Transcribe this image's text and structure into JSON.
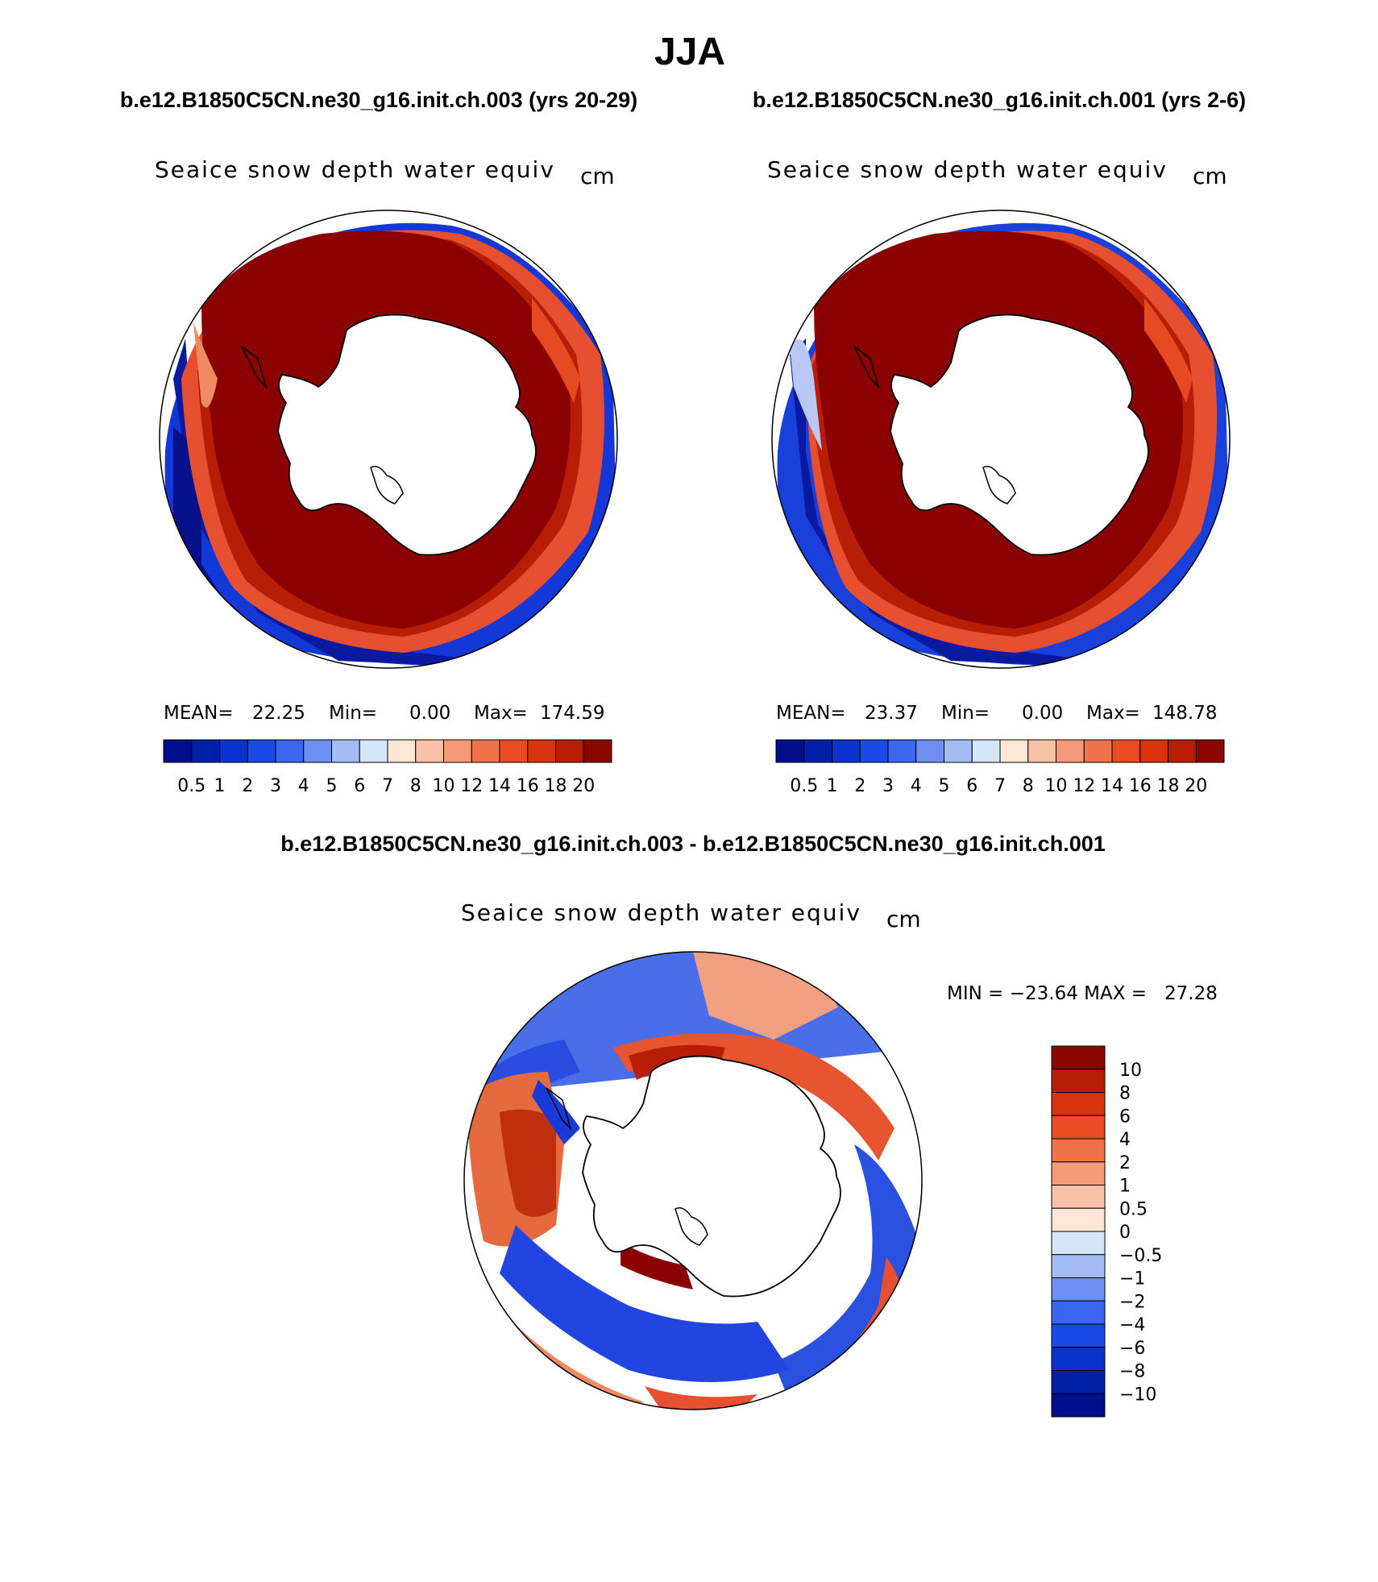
{
  "title": "JJA",
  "panels": [
    {
      "case_title": "b.e12.B1850C5CN.ne30_g16.init.ch.003 (yrs 20-29)",
      "field": "Seaice snow depth water equiv",
      "units": "cm",
      "stats": {
        "mean_label": "MEAN=",
        "mean": "22.25",
        "min_label": "Min=",
        "min": "0.00",
        "max_label": "Max=",
        "max": "174.59"
      },
      "variant": 0
    },
    {
      "case_title": "b.e12.B1850C5CN.ne30_g16.init.ch.001 (yrs 2-6)",
      "field": "Seaice snow depth water equiv",
      "units": "cm",
      "stats": {
        "mean_label": "MEAN=",
        "mean": "23.37",
        "min_label": "Min=",
        "min": "0.00",
        "max_label": "Max=",
        "max": "148.78"
      },
      "variant": 1
    }
  ],
  "colorbar": {
    "ticks": [
      "0.5",
      "1",
      "2",
      "3",
      "4",
      "5",
      "6",
      "7",
      "8",
      "10",
      "12",
      "14",
      "16",
      "18",
      "20"
    ],
    "colors": [
      "#000e8c",
      "#0020a8",
      "#0a32cc",
      "#1a4ae6",
      "#3a66f0",
      "#6e8ef2",
      "#a4bcf5",
      "#d6e6fa",
      "#fde6d6",
      "#f8c2a8",
      "#f49a78",
      "#f0724a",
      "#ec4a22",
      "#d8320e",
      "#b81e06",
      "#8c0600"
    ]
  },
  "difference": {
    "title": "b.e12.B1850C5CN.ne30_g16.init.ch.003 - b.e12.B1850C5CN.ne30_g16.init.ch.001",
    "field": "Seaice snow depth water equiv",
    "units": "cm",
    "range_text": "MIN = −23.64 MAX =   27.28",
    "colorbar": {
      "ticks": [
        "10",
        "8",
        "6",
        "4",
        "2",
        "1",
        "0.5",
        "0",
        "−0.5",
        "−1",
        "−2",
        "−4",
        "−6",
        "−8",
        "−10"
      ],
      "colors": [
        "#8c0600",
        "#b81e06",
        "#d8320e",
        "#ec4a22",
        "#f0724a",
        "#f49a78",
        "#f8c2a8",
        "#fde6d6",
        "#d6e6fa",
        "#a4bcf5",
        "#6e8ef2",
        "#3a66f0",
        "#1a4ae6",
        "#0a32cc",
        "#0020a8",
        "#000e8c"
      ]
    }
  },
  "colors": {
    "sea_ice_high": "#8b0000",
    "sea_ice_low": "#00108c",
    "land": "#ffffff"
  }
}
